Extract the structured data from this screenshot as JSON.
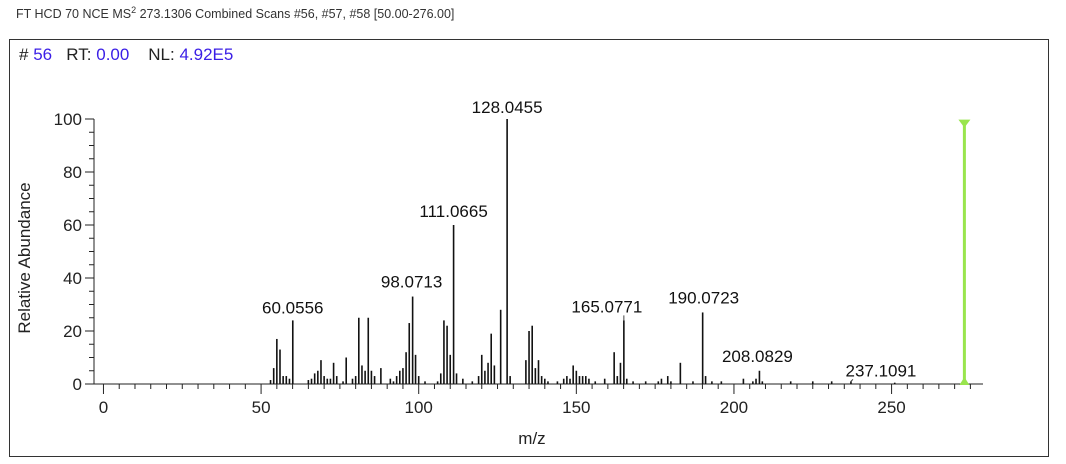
{
  "header": {
    "prefix": "FT HCD 70 NCE MS",
    "superscript": "2",
    "suffix": "273.1306 Combined Scans #56, #57, #58 [50.00-276.00]"
  },
  "scan_info": {
    "scan_label": "#",
    "scan_value": "56",
    "rt_label": "RT:",
    "rt_value": "0.00",
    "nl_label": "NL:",
    "nl_value": "4.92E5"
  },
  "colors": {
    "axis": "#222222",
    "peaks": "#111111",
    "precursor_marker": "#99e54d",
    "accent_text": "#3a1ee6"
  },
  "chart_data": {
    "type": "bar",
    "xlabel": "m/z",
    "ylabel": "Relative Abundance",
    "xlim": [
      -3,
      279
    ],
    "ylim": [
      0,
      100
    ],
    "x_ticks": [
      0,
      50,
      100,
      150,
      200,
      250
    ],
    "y_ticks": [
      0,
      20,
      40,
      60,
      80,
      100
    ],
    "precursor_marker": {
      "x": 273.1,
      "y": 99
    },
    "labeled_peaks": [
      {
        "x": 60.0556,
        "y": 24,
        "label": "60.0556"
      },
      {
        "x": 98.0713,
        "y": 33,
        "label": "98.0713"
      },
      {
        "x": 111.0665,
        "y": 60,
        "label": "111.0665"
      },
      {
        "x": 128.0455,
        "y": 100,
        "label": "128.0455"
      },
      {
        "x": 165.0771,
        "y": 24,
        "label": "165.0771"
      },
      {
        "x": 190.0723,
        "y": 27,
        "label": "190.0723"
      },
      {
        "x": 208.0829,
        "y": 5,
        "label": "208.0829"
      },
      {
        "x": 237.1091,
        "y": 1,
        "label": "237.1091"
      }
    ],
    "peaks": [
      [
        53.0,
        1.5
      ],
      [
        54.0,
        6
      ],
      [
        55.0,
        17
      ],
      [
        56.0,
        13
      ],
      [
        57.0,
        3
      ],
      [
        58.0,
        3
      ],
      [
        59.0,
        2
      ],
      [
        60.0556,
        24
      ],
      [
        65.0,
        1.5
      ],
      [
        66.0,
        2
      ],
      [
        67.0,
        4
      ],
      [
        68.0,
        5
      ],
      [
        69.0,
        9
      ],
      [
        70.0,
        3
      ],
      [
        71.0,
        2
      ],
      [
        72.0,
        2
      ],
      [
        73.0,
        8
      ],
      [
        74.0,
        3
      ],
      [
        76.0,
        1
      ],
      [
        77.0,
        10
      ],
      [
        79.0,
        2
      ],
      [
        80.0,
        3
      ],
      [
        81.0,
        25
      ],
      [
        82.0,
        7
      ],
      [
        83.0,
        5
      ],
      [
        84.0,
        25
      ],
      [
        85.0,
        5
      ],
      [
        86.0,
        3
      ],
      [
        88.0,
        6
      ],
      [
        91.0,
        2
      ],
      [
        92.0,
        1
      ],
      [
        93.0,
        3
      ],
      [
        94.0,
        5
      ],
      [
        95.0,
        6
      ],
      [
        96.0,
        12
      ],
      [
        97.0,
        23
      ],
      [
        98.0713,
        33
      ],
      [
        99.0,
        11
      ],
      [
        100.0,
        3
      ],
      [
        102.0,
        1
      ],
      [
        106.0,
        1
      ],
      [
        107.0,
        4
      ],
      [
        108.0,
        24
      ],
      [
        109.0,
        22
      ],
      [
        110.0,
        11
      ],
      [
        111.0665,
        60
      ],
      [
        112.0,
        4
      ],
      [
        114.0,
        2
      ],
      [
        117.0,
        1
      ],
      [
        119.0,
        3
      ],
      [
        120.0,
        11
      ],
      [
        121.0,
        5
      ],
      [
        122.0,
        8
      ],
      [
        123.0,
        19
      ],
      [
        124.0,
        7
      ],
      [
        126.0,
        28
      ],
      [
        128.0455,
        100
      ],
      [
        129.0,
        3
      ],
      [
        134.0,
        9
      ],
      [
        135.0,
        20
      ],
      [
        136.0,
        22
      ],
      [
        137.0,
        6
      ],
      [
        138.0,
        9
      ],
      [
        139.0,
        3
      ],
      [
        140.0,
        2
      ],
      [
        141.0,
        1
      ],
      [
        144.0,
        1
      ],
      [
        146.0,
        2
      ],
      [
        147.0,
        3
      ],
      [
        148.0,
        2
      ],
      [
        149.0,
        7
      ],
      [
        150.0,
        5
      ],
      [
        151.0,
        3
      ],
      [
        152.0,
        3
      ],
      [
        153.0,
        3
      ],
      [
        154.0,
        2
      ],
      [
        156.0,
        1
      ],
      [
        159.0,
        2
      ],
      [
        162.0,
        12
      ],
      [
        163.0,
        3
      ],
      [
        164.0,
        8
      ],
      [
        165.0771,
        24
      ],
      [
        166.0,
        2
      ],
      [
        168.0,
        1
      ],
      [
        172.0,
        1
      ],
      [
        176.0,
        1
      ],
      [
        177.0,
        2
      ],
      [
        179.0,
        3
      ],
      [
        180.0,
        1
      ],
      [
        183.0,
        8
      ],
      [
        187.0,
        1
      ],
      [
        190.0723,
        27
      ],
      [
        191.0,
        3
      ],
      [
        193.0,
        1
      ],
      [
        196.0,
        1
      ],
      [
        203.0,
        2
      ],
      [
        206.0,
        1
      ],
      [
        207.0,
        2
      ],
      [
        208.0829,
        5
      ],
      [
        209.0,
        1
      ],
      [
        218.0,
        1
      ],
      [
        225.0,
        1
      ],
      [
        231.0,
        1
      ],
      [
        237.1091,
        1
      ],
      [
        251.0,
        0.5
      ]
    ]
  }
}
